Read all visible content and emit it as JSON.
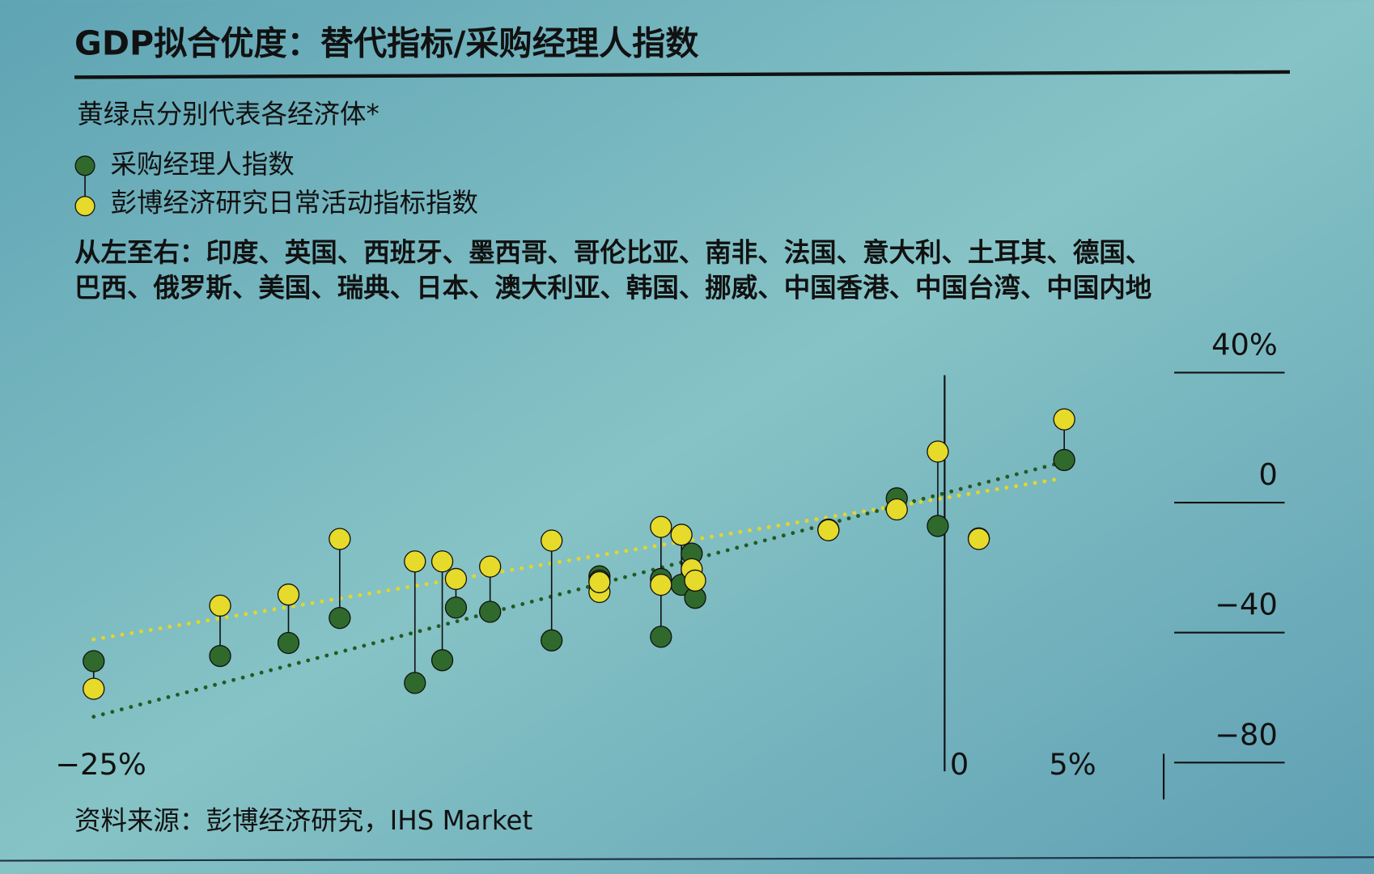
{
  "chart_data": {
    "type": "dumbbell",
    "title": "GDP拟合优度：替代指标/采购经理人指数",
    "subtitle": "黄绿点分别代表各经济体*",
    "note": [
      "从左至右：印度、英国、西班牙、墨西哥、哥伦比亚、南非、法国、意大利、土耳其、德国、",
      "巴西、俄罗斯、美国、瑞典、日本、澳大利亚、韩国、挪威、中国香港、中国台湾、中国内地"
    ],
    "source": "资料来源：彭博经济研究，IHS Market",
    "x": [
      -24.9,
      -21.2,
      -19.2,
      -17.7,
      -15.5,
      -14.7,
      -14.3,
      -13.3,
      -11.5,
      -10.1,
      -10.1,
      -8.3,
      -8.3,
      -7.7,
      -7.4,
      -7.3,
      -3.4,
      -1.4,
      -0.2,
      1.0,
      3.5
    ],
    "series": [
      {
        "name": "采购经理人指数",
        "color": "#2f6a2c",
        "values": [
          -48.8,
          -47.2,
          -43.2,
          -35.5,
          -55.5,
          -48.5,
          -32.3,
          -33.6,
          -42.4,
          -22.7,
          -24.0,
          -41.3,
          -23.5,
          -25.3,
          -15.7,
          -29.3,
          -8.3,
          1.3,
          -7.2,
          -11.0,
          13.1
        ],
        "trend": {
          "x": [
            -24.9,
            3.3
          ],
          "values": [
            -65.9,
            12.0
          ]
        }
      },
      {
        "name": "彭博经济研究日常活动指标指数",
        "color": "#e6da2b",
        "values": [
          -57.3,
          -31.7,
          -28.3,
          -11.2,
          -18.1,
          -18.1,
          -23.5,
          -19.7,
          -11.7,
          -27.5,
          -24.5,
          -7.5,
          -25.3,
          -9.9,
          -20.5,
          -24.0,
          -8.5,
          -2.1,
          15.7,
          -11.2,
          25.6
        ],
        "trend": {
          "x": [
            -24.9,
            3.3
          ],
          "values": [
            -42.1,
            7.2
          ]
        }
      }
    ],
    "xlim": [
      -25,
      5
    ],
    "xticks": [
      {
        "value": -25,
        "label": "−25%"
      },
      0,
      {
        "value": 5,
        "label": "5%"
      }
    ],
    "ylim": [
      -80,
      40
    ],
    "yticks": [
      {
        "value": 40,
        "label": "40%"
      },
      0,
      {
        "value": -40,
        "label": "−40"
      },
      {
        "value": -80,
        "label": "−80"
      }
    ]
  }
}
